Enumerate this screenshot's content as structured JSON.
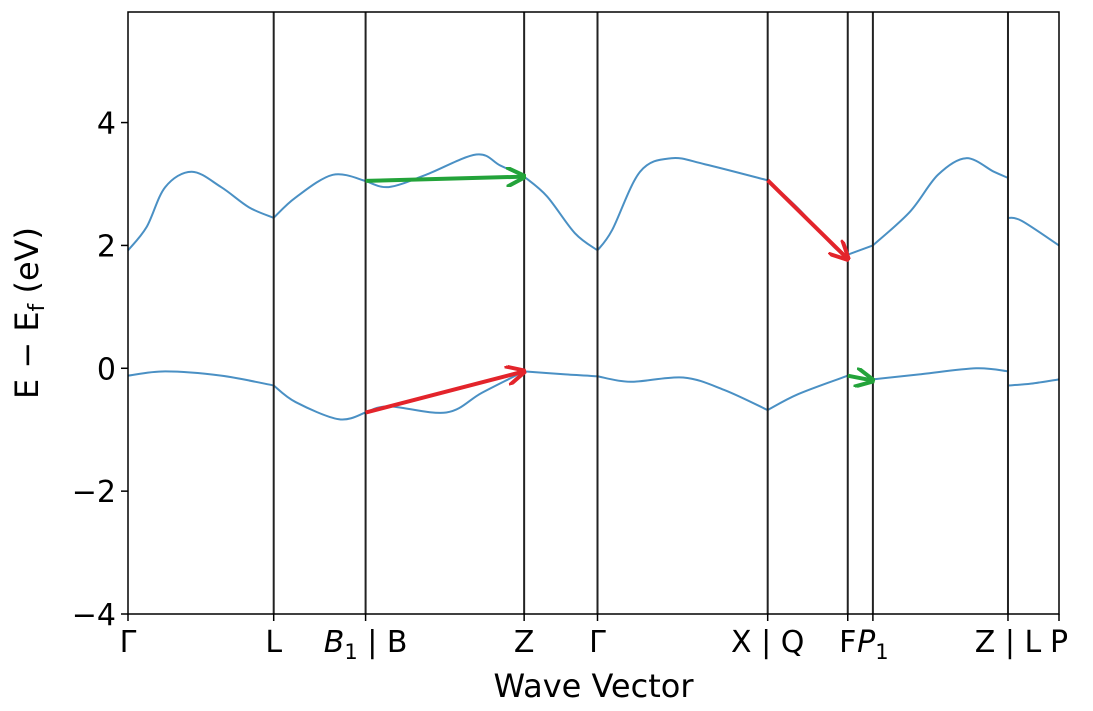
{
  "chart_data": {
    "type": "line",
    "xlabel": "Wave Vector",
    "ylabel": "E − E",
    "ylabel_sub": "f",
    "ylabel_unit": " (eV)",
    "ylim": [
      -4,
      5.8
    ],
    "xlim": [
      0,
      1
    ],
    "yticks": [
      {
        "value": -4,
        "label": "−4"
      },
      {
        "value": -2,
        "label": "−2"
      },
      {
        "value": 0,
        "label": "0"
      },
      {
        "value": 2,
        "label": "2"
      },
      {
        "value": 4,
        "label": "4"
      }
    ],
    "kpoints": [
      {
        "x": 0.0,
        "label": "Γ"
      },
      {
        "x": 0.1565,
        "label": "L"
      },
      {
        "x": 0.2552,
        "label": "B",
        "sub": "1",
        "suffix": " | B"
      },
      {
        "x": 0.4255,
        "label": "Z"
      },
      {
        "x": 0.5043,
        "label": "Γ"
      },
      {
        "x": 0.6871,
        "label": "X | Q"
      },
      {
        "x": 0.7731,
        "label": "F"
      },
      {
        "x": 0.8001,
        "label": "P",
        "sub": "1"
      },
      {
        "x": 0.9452,
        "label": "Z | L"
      },
      {
        "x": 1.0,
        "label": "P"
      }
    ],
    "vlines_at_x": [
      0.1565,
      0.2552,
      0.4255,
      0.5043,
      0.6871,
      0.7731,
      0.8001,
      0.9452
    ],
    "line_color": "#4a90c4",
    "series": [
      {
        "segments": [
          [
            [
              0.0,
              1.92
            ],
            [
              0.02,
              2.3
            ],
            [
              0.04,
              2.95
            ],
            [
              0.0684,
              3.2
            ],
            [
              0.1,
              2.95
            ],
            [
              0.13,
              2.62
            ],
            [
              0.1565,
              2.45
            ]
          ],
          [
            [
              0.1565,
              2.45
            ],
            [
              0.18,
              2.78
            ],
            [
              0.22,
              3.15
            ],
            [
              0.2552,
              3.05
            ]
          ],
          [
            [
              0.2552,
              3.05
            ],
            [
              0.28,
              2.95
            ],
            [
              0.32,
              3.15
            ],
            [
              0.3741,
              3.48
            ],
            [
              0.4,
              3.3
            ],
            [
              0.4255,
              3.12
            ]
          ],
          [
            [
              0.4255,
              3.12
            ],
            [
              0.45,
              2.8
            ],
            [
              0.48,
              2.2
            ],
            [
              0.5043,
              1.92
            ]
          ],
          [
            [
              0.5043,
              1.92
            ],
            [
              0.52,
              2.25
            ],
            [
              0.55,
              3.2
            ],
            [
              0.5835,
              3.42
            ],
            [
              0.62,
              3.32
            ],
            [
              0.6871,
              3.06
            ]
          ],
          [
            [
              0.6871,
              3.06
            ],
            [
              0.72,
              2.6
            ],
            [
              0.76,
              1.95
            ],
            [
              0.7731,
              1.85
            ]
          ],
          [
            [
              0.7731,
              1.85
            ],
            [
              0.8001,
              2.0
            ]
          ],
          [
            [
              0.8001,
              2.0
            ],
            [
              0.84,
              2.55
            ],
            [
              0.87,
              3.15
            ],
            [
              0.9002,
              3.42
            ],
            [
              0.93,
              3.2
            ],
            [
              0.9452,
              3.1
            ]
          ],
          [
            [
              0.9452,
              2.45
            ],
            [
              0.96,
              2.4
            ],
            [
              1.0,
              2.0
            ]
          ]
        ]
      },
      {
        "segments": [
          [
            [
              0.0,
              -0.12
            ],
            [
              0.04,
              -0.05
            ],
            [
              0.1,
              -0.12
            ],
            [
              0.1565,
              -0.28
            ]
          ],
          [
            [
              0.1565,
              -0.28
            ],
            [
              0.18,
              -0.55
            ],
            [
              0.2266,
              -0.83
            ],
            [
              0.2552,
              -0.72
            ]
          ],
          [
            [
              0.2552,
              -0.72
            ],
            [
              0.28,
              -0.62
            ],
            [
              0.3419,
              -0.72
            ],
            [
              0.38,
              -0.4
            ],
            [
              0.4255,
              -0.05
            ]
          ],
          [
            [
              0.4255,
              -0.05
            ],
            [
              0.47,
              -0.1
            ],
            [
              0.5043,
              -0.13
            ]
          ],
          [
            [
              0.5043,
              -0.13
            ],
            [
              0.54,
              -0.22
            ],
            [
              0.5962,
              -0.15
            ],
            [
              0.64,
              -0.35
            ],
            [
              0.6871,
              -0.68
            ]
          ],
          [
            [
              0.6871,
              -0.68
            ],
            [
              0.72,
              -0.42
            ],
            [
              0.7731,
              -0.12
            ]
          ],
          [
            [
              0.7731,
              -0.12
            ],
            [
              0.8001,
              -0.18
            ]
          ],
          [
            [
              0.8001,
              -0.18
            ],
            [
              0.85,
              -0.1
            ],
            [
              0.9109,
              0.0
            ],
            [
              0.9452,
              -0.05
            ]
          ],
          [
            [
              0.9452,
              -0.28
            ],
            [
              0.97,
              -0.25
            ],
            [
              1.0,
              -0.18
            ]
          ]
        ]
      }
    ],
    "arrows": [
      {
        "color": "#23a33a",
        "from": [
          0.2552,
          3.05
        ],
        "to": [
          0.4255,
          3.12
        ]
      },
      {
        "color": "#e3242b",
        "from": [
          0.2552,
          -0.72
        ],
        "to": [
          0.4255,
          -0.05
        ]
      },
      {
        "color": "#e3242b",
        "from": [
          0.6871,
          3.06
        ],
        "to": [
          0.7731,
          1.78
        ]
      },
      {
        "color": "#23a33a",
        "from": [
          0.7731,
          -0.12
        ],
        "to": [
          0.8001,
          -0.2
        ]
      }
    ]
  }
}
